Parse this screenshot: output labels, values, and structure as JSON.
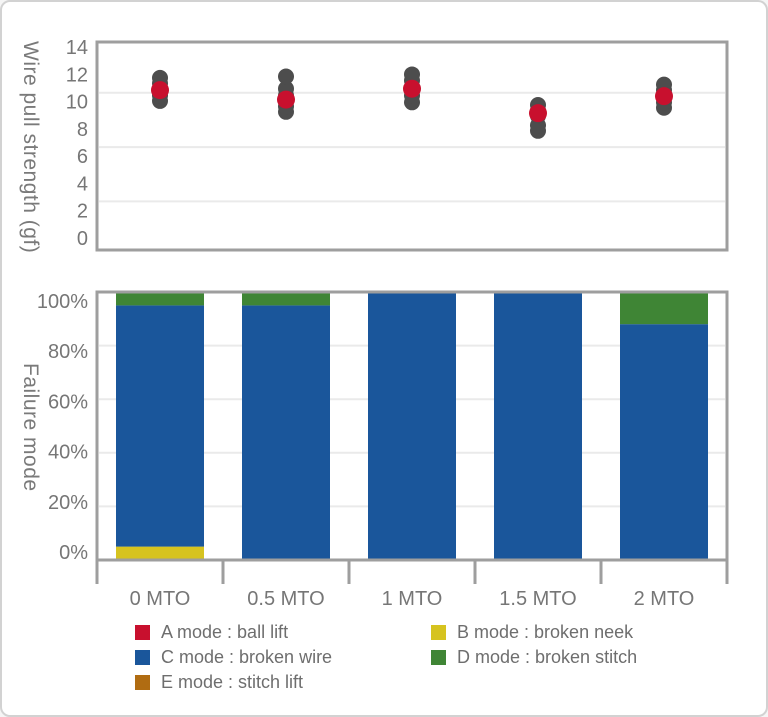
{
  "figure": {
    "top_axis_title": "Wire pull strength (gf)",
    "bottom_axis_title": "Failure mode"
  },
  "colors": {
    "plot_border": "#9e9e9e",
    "gridline": "#eaeaea",
    "tick_text": "#767676",
    "axis_title_text": "#7a7a7a",
    "legend_text": "#6e6e6e",
    "sample_dot_gray": "#4d4d4d",
    "mean_dot_red": "#c8102e",
    "a_mode_red": "#c8102e",
    "b_mode_yellow": "#d6c31f",
    "c_mode_blue": "#1a569b",
    "d_mode_green": "#3f8535",
    "e_mode_brown": "#b06c12"
  },
  "chart_data": [
    {
      "type": "scatter",
      "title": "Wire pull strength (gf)",
      "ylabel": "Wire pull strength (gf)",
      "xlabel": "",
      "ylim": [
        0,
        14
      ],
      "yticks": [
        0,
        2,
        4,
        6,
        8,
        10,
        12,
        14
      ],
      "gridlines_at": [
        2,
        6,
        10
      ],
      "grid": true,
      "legend_position": "none",
      "categories": [
        "0 MTO",
        "0.5 MTO",
        "1 MTO",
        "1.5 MTO",
        "2 MTO"
      ],
      "series": [
        {
          "name": "wire pull samples",
          "color": "#4d4d4d",
          "points_by_category": [
            [
              9.4,
              9.8,
              10.3,
              10.7,
              11.1
            ],
            [
              8.6,
              9.0,
              9.4,
              9.8,
              10.3,
              11.2
            ],
            [
              9.3,
              9.8,
              10.3,
              10.9,
              11.35
            ],
            [
              7.2,
              7.6,
              8.3,
              8.7,
              9.1
            ],
            [
              8.9,
              9.3,
              9.8,
              10.2,
              10.6
            ]
          ]
        },
        {
          "name": "mean",
          "color": "#c8102e",
          "points_by_category": [
            [
              10.2
            ],
            [
              9.5
            ],
            [
              10.3
            ],
            [
              8.5
            ],
            [
              9.75
            ]
          ]
        }
      ]
    },
    {
      "type": "bar",
      "stacked": true,
      "title": "Failure mode",
      "ylabel": "Failure mode",
      "xlabel": "",
      "ylim": [
        0,
        100
      ],
      "yticks": [
        "0%",
        "20%",
        "40%",
        "60%",
        "80%",
        "100%"
      ],
      "ytick_values": [
        0,
        20,
        40,
        60,
        80,
        100
      ],
      "gridlines_at": [
        20,
        40,
        60,
        80
      ],
      "grid": true,
      "legend_position": "bottom",
      "categories": [
        "0 MTO",
        "0.5 MTO",
        "1 MTO",
        "1.5 MTO",
        "2 MTO"
      ],
      "series": [
        {
          "name": "A mode : ball lift",
          "color": "#c8102e",
          "values": [
            0,
            0,
            0,
            0,
            0
          ]
        },
        {
          "name": "B mode : broken neek",
          "color": "#d6c31f",
          "values": [
            5,
            0,
            0,
            0,
            0
          ]
        },
        {
          "name": "C mode : broken wire",
          "color": "#1a569b",
          "values": [
            90,
            95,
            100,
            100,
            88
          ]
        },
        {
          "name": "D mode : broken stitch",
          "color": "#3f8535",
          "values": [
            5,
            5,
            0,
            0,
            12
          ]
        },
        {
          "name": "E mode : stitch lift",
          "color": "#b06c12",
          "values": [
            0,
            0,
            0,
            0,
            0
          ]
        }
      ]
    }
  ],
  "legend": {
    "items": [
      {
        "label": "A mode : ball lift",
        "color": "#c8102e"
      },
      {
        "label": "B mode : broken neek",
        "color": "#d6c31f"
      },
      {
        "label": "C mode : broken wire",
        "color": "#1a569b"
      },
      {
        "label": "D mode : broken stitch",
        "color": "#3f8535"
      },
      {
        "label": "E mode : stitch lift",
        "color": "#b06c12"
      }
    ]
  }
}
